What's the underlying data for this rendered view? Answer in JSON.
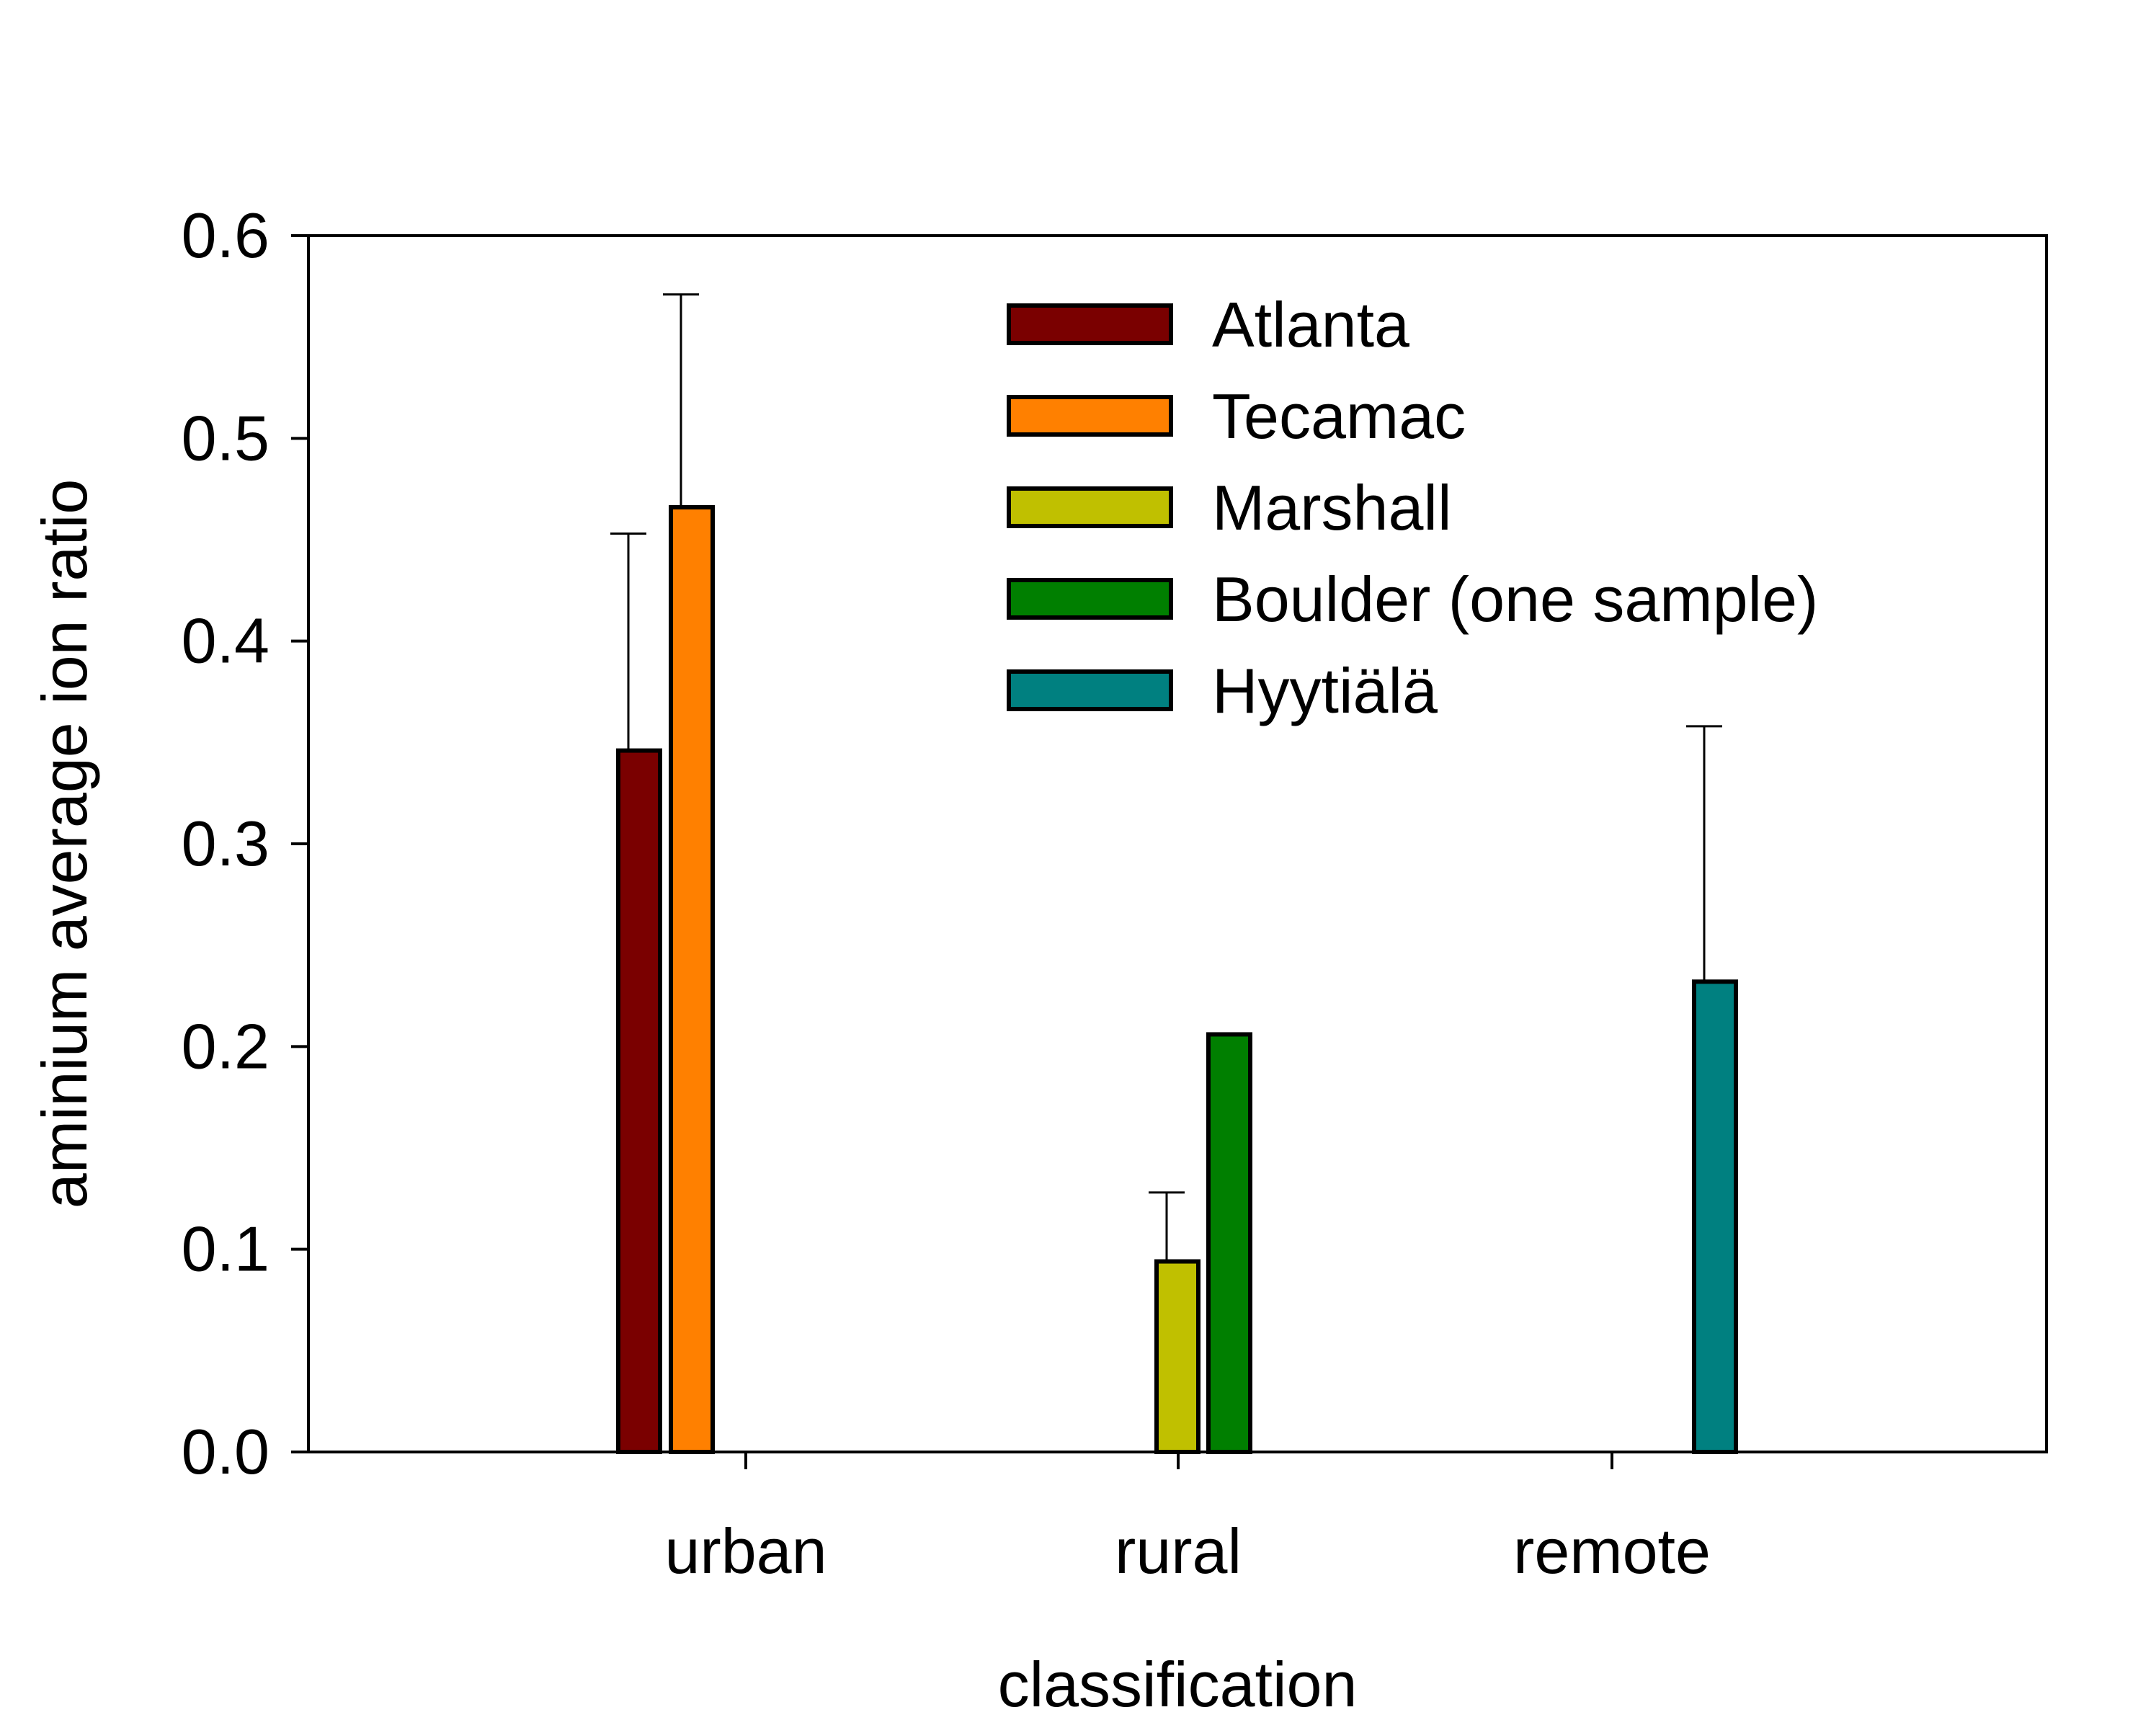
{
  "chart_data": {
    "type": "bar",
    "xlabel": "classification",
    "ylabel": "aminium average ion ratio",
    "categories": [
      "urban",
      "rural",
      "remote"
    ],
    "ylim": [
      0,
      0.6
    ],
    "yticks": [
      "0.0",
      "0.1",
      "0.2",
      "0.3",
      "0.4",
      "0.5",
      "0.6"
    ],
    "grid": false,
    "legend_position": "top-right",
    "series": [
      {
        "name": "Atlanta",
        "color": "#7a0000",
        "category": "urban",
        "value": 0.346,
        "error": 0.107
      },
      {
        "name": "Tecamac",
        "color": "#ff8000",
        "category": "urban",
        "value": 0.466,
        "error": 0.105
      },
      {
        "name": "Marshall",
        "color": "#c0c000",
        "category": "rural",
        "value": 0.094,
        "error": 0.034
      },
      {
        "name": "Boulder (one sample)",
        "color": "#007f00",
        "category": "rural",
        "value": 0.206,
        "error": null
      },
      {
        "name": "Hyytiälä",
        "color": "#008080",
        "category": "remote",
        "value": 0.232,
        "error": 0.126
      }
    ]
  }
}
